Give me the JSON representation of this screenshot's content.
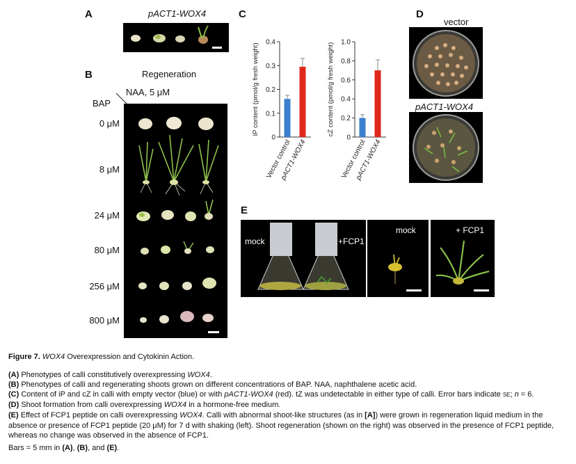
{
  "panels": {
    "A": {
      "letter": "A",
      "title": "pACT1-WOX4"
    },
    "B": {
      "letter": "B",
      "title": "Regeneration",
      "col_header": "NAA, 5 μM",
      "row_header": "BAP",
      "rows": [
        "0 μM",
        "8 μM",
        "24 μM",
        "80 μM",
        "256 μM",
        "800 μM"
      ]
    },
    "C": {
      "letter": "C"
    },
    "D": {
      "letter": "D",
      "top_label": "vector",
      "bottom_label": "pACT1-WOX4"
    },
    "E": {
      "letter": "E",
      "labels": [
        "mock",
        "+FCP1",
        "mock",
        "+ FCP1"
      ]
    }
  },
  "chart_data": [
    {
      "type": "bar",
      "categories": [
        "Vector control",
        "pACT1-WOX4"
      ],
      "values": [
        0.16,
        0.295
      ],
      "errors": [
        0.015,
        0.035
      ],
      "ylabel": "IP content (pmol/g fresh weight)",
      "yticks": [
        "0",
        "0.1",
        "0.2",
        "0.3",
        "0.4"
      ],
      "ylim": [
        0,
        0.4
      ],
      "colors": [
        "#3a7fd0",
        "#e0281c"
      ]
    },
    {
      "type": "bar",
      "categories": [
        "Vector control",
        "pACT1-WOX4"
      ],
      "values": [
        0.2,
        0.7
      ],
      "errors": [
        0.035,
        0.11
      ],
      "ylabel": "cZ content (pmol/g fresh weight)",
      "yticks": [
        "0",
        "0.2",
        "0.4",
        "0.6",
        "0.8",
        "1.0"
      ],
      "ylim": [
        0,
        1.0
      ],
      "colors": [
        "#3a7fd0",
        "#e0281c"
      ]
    }
  ],
  "caption": {
    "fig_label": "Figure 7.",
    "fig_title_gene": "WOX4",
    "fig_title_rest": " Overexpression and Cytokinin Action.",
    "A_tag": "(A)",
    "A_text": " Phenotypes of calli constitutively overexpressing ",
    "A_gene": "WOX4",
    "A_end": ".",
    "B_tag": "(B)",
    "B_text": " Phenotypes of calli and regenerating shoots grown on different concentrations of BAP. NAA, naphthalene acetic acid.",
    "C_tag": "(C)",
    "C_text1": " Content of iP and cZ in calli with empty vector (blue) or with ",
    "C_gene": "pACT1-WOX4",
    "C_text2": " (red). tZ was undetectable in either type of calli. Error bars indicate ",
    "C_se": "se",
    "C_text3": "; ",
    "C_n": "n",
    "C_text4": " = 6.",
    "D_tag": "(D)",
    "D_text": " Shoot formation from calli overexpressing ",
    "D_gene": "WOX4",
    "D_end": " in a hormone-free medium.",
    "E_tag": "(E)",
    "E_text1": " Effect of FCP1 peptide on calli overexpressing ",
    "E_gene": "WOX4",
    "E_text2": ". Calli with abnormal shoot-like structures (as in ",
    "E_ref": "[A]",
    "E_text3": ") were grown in regeneration liquid medium in the absence or presence of FCP1 peptide (20 μM) for 7 d with shaking (left). Shoot regeneration (shown on the right) was observed in the presence of FCP1 peptide, whereas no change was observed in the absence of FCP1.",
    "bars_text": "Bars = 5 mm in ",
    "bars_A": "(A)",
    "bars_sep1": ", ",
    "bars_B": "(B)",
    "bars_sep2": ", and ",
    "bars_E": "(E)",
    "bars_end": "."
  }
}
